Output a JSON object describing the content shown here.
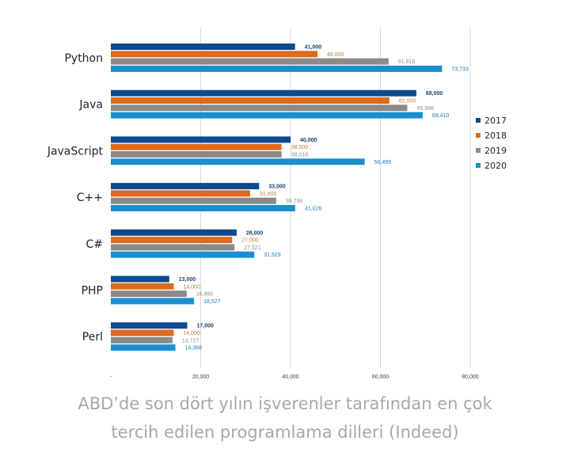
{
  "chart_data": {
    "type": "bar",
    "orientation": "horizontal",
    "categories": [
      "Python",
      "Java",
      "JavaScript",
      "C++",
      "C#",
      "PHP",
      "Perl"
    ],
    "series": [
      {
        "name": "2017",
        "color": "#0d4a8f",
        "label_color": "#1f3f6b",
        "values": [
          41000,
          68000,
          40000,
          33000,
          28000,
          13000,
          17000
        ],
        "labels": [
          "41,000",
          "68,000",
          "40,000",
          "33,000",
          "28,000",
          "13,000",
          "17,000"
        ]
      },
      {
        "name": "2018",
        "color": "#dd6a1e",
        "label_color": "#c07a3e",
        "values": [
          46000,
          62000,
          38000,
          31000,
          27000,
          14000,
          14000
        ],
        "labels": [
          "46,000",
          "62,000",
          "38,000",
          "31,000",
          "27,000",
          "14,000",
          "14,000"
        ]
      },
      {
        "name": "2019",
        "color": "#8a8a8a",
        "label_color": "#8e8e8e",
        "values": [
          61818,
          65986,
          38018,
          36798,
          27521,
          16890,
          13727
        ],
        "labels": [
          "61,818",
          "65,986",
          "38,018",
          "36,798",
          "27,521",
          "16,890",
          "13,727"
        ]
      },
      {
        "name": "2020",
        "color": "#1a8fd0",
        "label_color": "#1a7fb5",
        "values": [
          73733,
          69410,
          56499,
          41026,
          31929,
          18527,
          14368
        ],
        "labels": [
          "73,733",
          "69,410",
          "56,499",
          "41,026",
          "31,929",
          "18,527",
          "14,368"
        ]
      }
    ],
    "xticks": [
      "-",
      "20,000",
      "40,000",
      "60,000",
      "80,000"
    ],
    "xtick_values": [
      0,
      20000,
      40000,
      60000,
      80000
    ],
    "xlim": [
      0,
      80000
    ],
    "grid": "vertical",
    "legend": "right"
  },
  "caption": {
    "line1": "ABD’de son dört yılın işverenler tarafından en çok",
    "line2": "tercih edilen programlama dilleri (Indeed)"
  }
}
